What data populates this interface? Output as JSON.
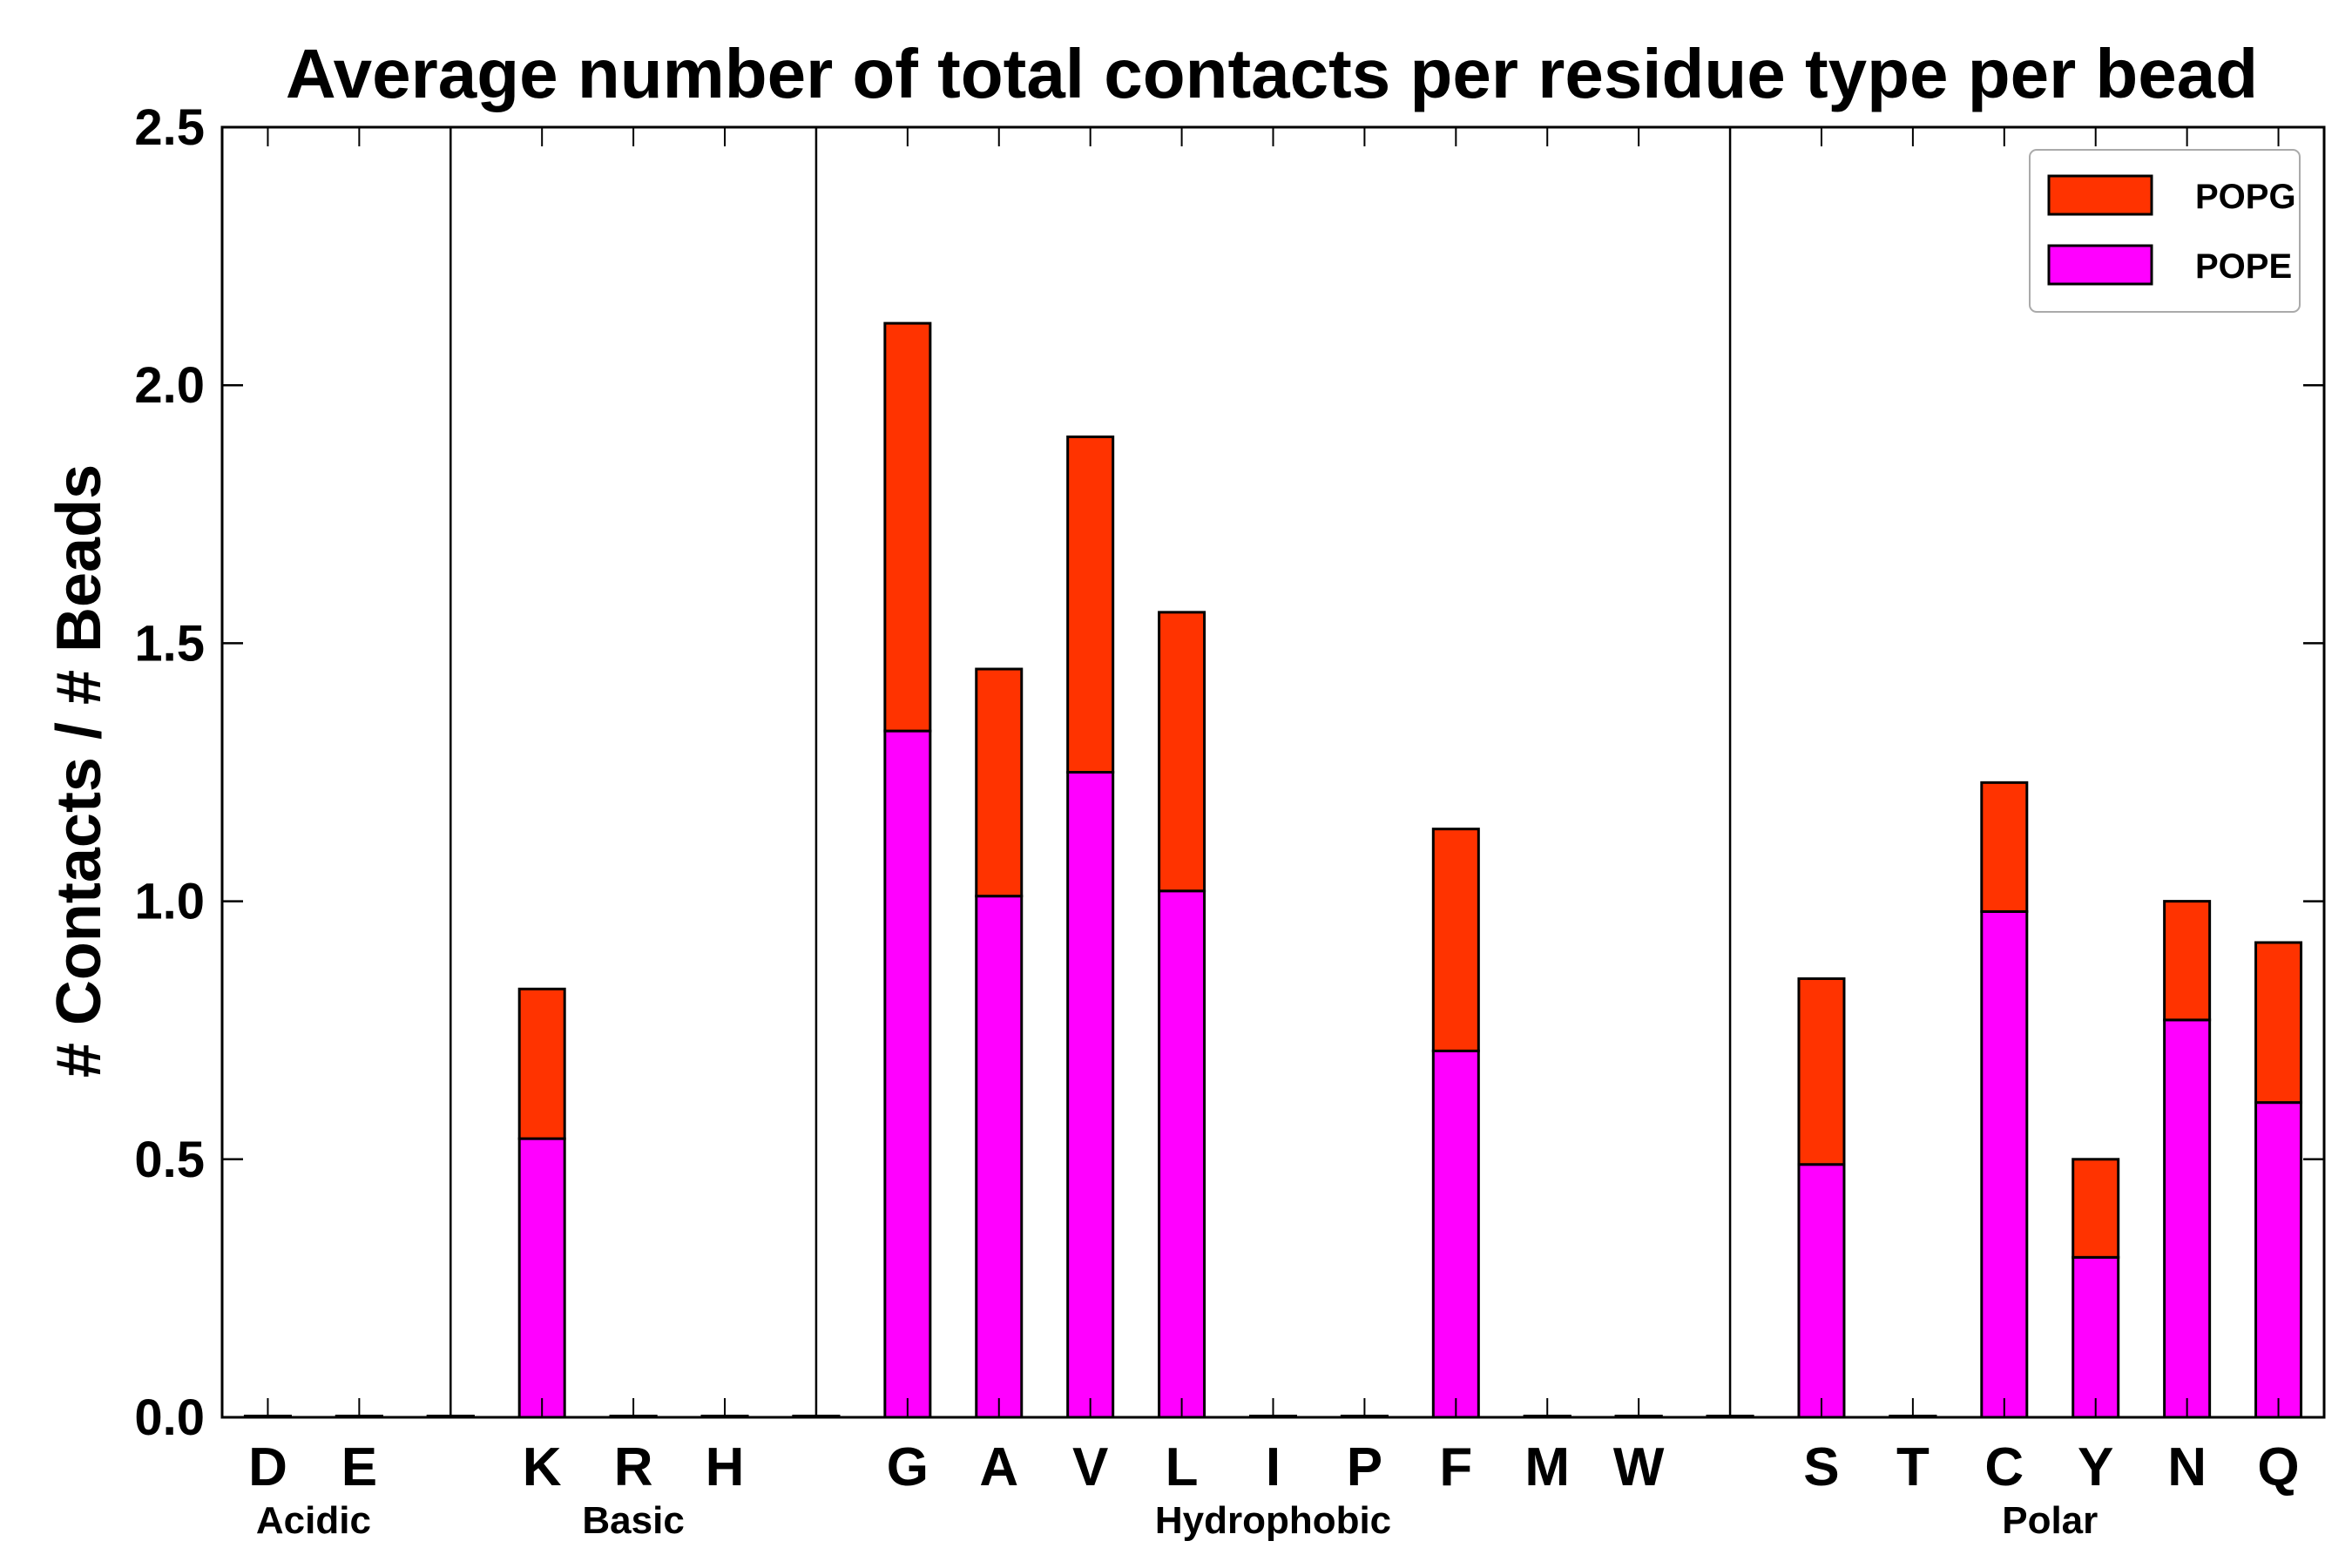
{
  "chart_data": {
    "type": "bar",
    "stacked": true,
    "title": "Average number of total contacts per residue type per bead",
    "xlabel": "",
    "ylabel": "# Contacts / # Beads",
    "ylim": [
      0,
      2.5
    ],
    "yticks": [
      "0.0",
      "0.5",
      "1.0",
      "1.5",
      "2.0",
      "2.5"
    ],
    "categories": [
      "D",
      "E",
      "",
      "K",
      "R",
      "H",
      "",
      "G",
      "A",
      "V",
      "L",
      "I",
      "P",
      "F",
      "M",
      "W",
      "",
      "S",
      "T",
      "C",
      "Y",
      "N",
      "Q"
    ],
    "series": [
      {
        "name": "POPE",
        "color": "#ff00ff",
        "values": [
          0,
          0,
          0,
          0.54,
          0,
          0,
          0,
          1.33,
          1.01,
          1.25,
          1.02,
          0,
          0,
          0.71,
          0,
          0,
          0,
          0.49,
          0,
          0.98,
          0.31,
          0.77,
          0.61
        ]
      },
      {
        "name": "POPG",
        "color": "#ff3300",
        "values": [
          0,
          0,
          0,
          0.29,
          0,
          0,
          0,
          0.79,
          0.44,
          0.65,
          0.54,
          0,
          0,
          0.43,
          0,
          0,
          0,
          0.36,
          0,
          0.25,
          0.19,
          0.23,
          0.31
        ]
      }
    ],
    "groups": [
      {
        "label": "Acidic"
      },
      {
        "label": "Basic"
      },
      {
        "label": "Hydrophobic"
      },
      {
        "label": "Polar"
      }
    ],
    "legend": {
      "position": "top-right",
      "entries": [
        "POPG",
        "POPE"
      ]
    }
  }
}
